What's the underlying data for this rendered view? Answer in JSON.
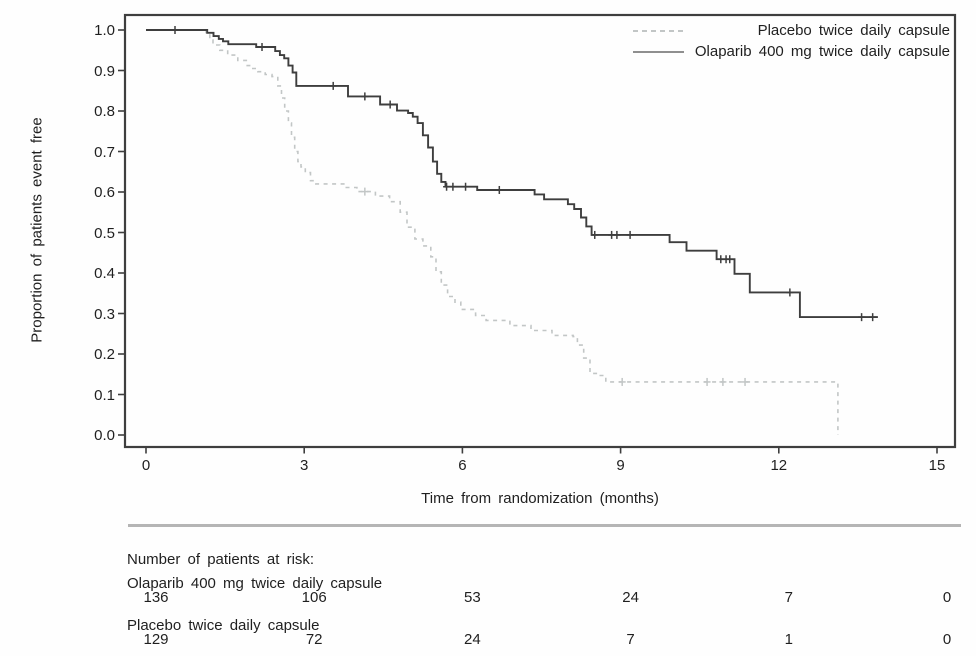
{
  "chart_data": {
    "type": "line",
    "subtype": "kaplan-meier-step",
    "title": "",
    "xlabel": "Time from randomization (months)",
    "ylabel": "Proportion of patients event free",
    "xlim": [
      0,
      15
    ],
    "ylim": [
      0.0,
      1.0
    ],
    "x_ticks": [
      "0",
      "3",
      "6",
      "9",
      "12",
      "15"
    ],
    "y_ticks": [
      "1.0",
      "0.9",
      "0.8",
      "0.7",
      "0.6",
      "0.5",
      "0.4",
      "0.3",
      "0.2",
      "0.1",
      "0.0"
    ],
    "grid": false,
    "legend_position": "top-right-inside",
    "series": [
      {
        "name": "Placebo twice daily capsule",
        "style": "dashed",
        "color": "#c2c6c6",
        "end_t": 13.12,
        "points": [
          [
            0,
            1.0
          ],
          [
            1.14,
            0.99
          ],
          [
            1.21,
            0.975
          ],
          [
            1.27,
            0.963
          ],
          [
            1.4,
            0.95
          ],
          [
            1.55,
            0.938
          ],
          [
            1.74,
            0.925
          ],
          [
            1.92,
            0.912
          ],
          [
            2.01,
            0.905
          ],
          [
            2.12,
            0.897
          ],
          [
            2.26,
            0.89
          ],
          [
            2.39,
            0.885
          ],
          [
            2.5,
            0.862
          ],
          [
            2.57,
            0.832
          ],
          [
            2.63,
            0.8
          ],
          [
            2.7,
            0.77
          ],
          [
            2.76,
            0.735
          ],
          [
            2.82,
            0.7
          ],
          [
            2.88,
            0.675
          ],
          [
            2.94,
            0.662
          ],
          [
            3.02,
            0.648
          ],
          [
            3.12,
            0.628
          ],
          [
            3.22,
            0.62
          ],
          [
            3.75,
            0.611
          ],
          [
            4.0,
            0.601
          ],
          [
            4.35,
            0.59
          ],
          [
            4.62,
            0.576
          ],
          [
            4.82,
            0.55
          ],
          [
            4.95,
            0.513
          ],
          [
            5.1,
            0.484
          ],
          [
            5.25,
            0.467
          ],
          [
            5.4,
            0.44
          ],
          [
            5.5,
            0.403
          ],
          [
            5.6,
            0.37
          ],
          [
            5.72,
            0.342
          ],
          [
            5.86,
            0.328
          ],
          [
            5.97,
            0.31
          ],
          [
            6.25,
            0.295
          ],
          [
            6.45,
            0.283
          ],
          [
            6.9,
            0.27
          ],
          [
            7.3,
            0.258
          ],
          [
            7.7,
            0.246
          ],
          [
            8.1,
            0.243
          ],
          [
            8.18,
            0.222
          ],
          [
            8.3,
            0.19
          ],
          [
            8.42,
            0.152
          ],
          [
            8.56,
            0.147
          ],
          [
            8.72,
            0.131
          ],
          [
            13.12,
            0.0
          ]
        ],
        "censor_marks": [
          [
            4.15,
            0.601
          ],
          [
            9.03,
            0.131
          ],
          [
            10.64,
            0.131
          ],
          [
            10.94,
            0.131
          ],
          [
            11.36,
            0.131
          ]
        ]
      },
      {
        "name": "Olaparib 400 mg twice daily capsule",
        "style": "solid",
        "color": "#3e3e3e",
        "end_t": 13.88,
        "points": [
          [
            0,
            1.0
          ],
          [
            1.16,
            0.993
          ],
          [
            1.28,
            0.985
          ],
          [
            1.38,
            0.978
          ],
          [
            1.46,
            0.972
          ],
          [
            1.56,
            0.965
          ],
          [
            2.09,
            0.958
          ],
          [
            2.45,
            0.948
          ],
          [
            2.54,
            0.938
          ],
          [
            2.62,
            0.93
          ],
          [
            2.7,
            0.912
          ],
          [
            2.78,
            0.895
          ],
          [
            2.85,
            0.862
          ],
          [
            3.83,
            0.836
          ],
          [
            4.44,
            0.816
          ],
          [
            4.76,
            0.801
          ],
          [
            4.97,
            0.795
          ],
          [
            5.06,
            0.786
          ],
          [
            5.15,
            0.77
          ],
          [
            5.25,
            0.74
          ],
          [
            5.35,
            0.71
          ],
          [
            5.44,
            0.675
          ],
          [
            5.52,
            0.645
          ],
          [
            5.6,
            0.625
          ],
          [
            5.68,
            0.613
          ],
          [
            6.28,
            0.605
          ],
          [
            7.37,
            0.594
          ],
          [
            7.55,
            0.582
          ],
          [
            8.0,
            0.57
          ],
          [
            8.12,
            0.558
          ],
          [
            8.25,
            0.537
          ],
          [
            8.35,
            0.515
          ],
          [
            8.45,
            0.494
          ],
          [
            9.93,
            0.476
          ],
          [
            10.25,
            0.455
          ],
          [
            10.82,
            0.434
          ],
          [
            11.16,
            0.398
          ],
          [
            11.45,
            0.352
          ],
          [
            12.4,
            0.291
          ]
        ],
        "censor_marks": [
          [
            0.55,
            1.0
          ],
          [
            2.2,
            0.958
          ],
          [
            3.55,
            0.862
          ],
          [
            4.15,
            0.836
          ],
          [
            4.63,
            0.816
          ],
          [
            5.7,
            0.613
          ],
          [
            5.82,
            0.613
          ],
          [
            6.06,
            0.613
          ],
          [
            6.7,
            0.605
          ],
          [
            8.51,
            0.494
          ],
          [
            8.83,
            0.494
          ],
          [
            8.93,
            0.494
          ],
          [
            9.18,
            0.494
          ],
          [
            10.9,
            0.434
          ],
          [
            11.0,
            0.434
          ],
          [
            11.07,
            0.434
          ],
          [
            12.21,
            0.352
          ],
          [
            13.57,
            0.291
          ],
          [
            13.78,
            0.291
          ]
        ]
      }
    ]
  },
  "legend": {
    "items": [
      {
        "label": "Placebo twice daily capsule",
        "style": "dashed"
      },
      {
        "label": "Olaparib 400 mg twice daily capsule",
        "style": "solid"
      }
    ]
  },
  "risk_table": {
    "title": "Number of patients at risk:",
    "time_points": [
      "0",
      "3",
      "6",
      "9",
      "12",
      "15"
    ],
    "rows": [
      {
        "label": "Olaparib 400 mg twice daily capsule",
        "values": [
          "136",
          "106",
          "53",
          "24",
          "7",
          "0"
        ]
      },
      {
        "label": "Placebo twice daily capsule",
        "values": [
          "129",
          "72",
          "24",
          "7",
          "1",
          "0"
        ]
      }
    ]
  },
  "colors": {
    "solid_line": "#3e3e3e",
    "dashed_line": "#c2c6c6",
    "frame": "#3e3e3e",
    "separator": "#b5b5b5",
    "text": "#1f1f1f"
  }
}
